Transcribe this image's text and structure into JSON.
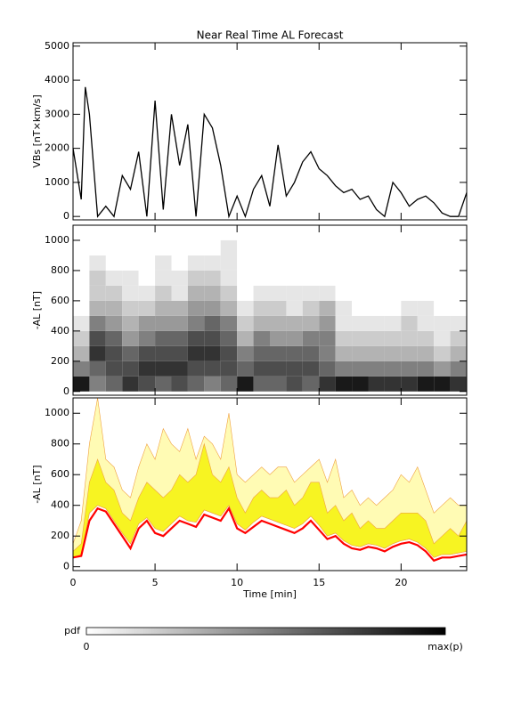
{
  "chart_data": [
    {
      "type": "line",
      "title": "Near Real Time AL Forecast",
      "y_label": "VBs [nT×km/s]",
      "color": "#000000",
      "x": [
        0,
        0.5,
        0.75,
        1,
        1.25,
        1.5,
        2,
        2.5,
        3,
        3.5,
        4,
        4.5,
        5,
        5.5,
        6,
        6.5,
        7,
        7.5,
        8,
        8.5,
        9,
        9.5,
        10,
        10.5,
        11,
        11.5,
        12,
        12.5,
        13,
        13.5,
        14,
        14.5,
        15,
        15.5,
        16,
        16.5,
        17,
        17.5,
        18,
        18.5,
        19,
        19.5,
        20,
        20.5,
        21,
        21.5,
        22,
        22.5,
        23,
        23.5,
        24
      ],
      "values": [
        2000,
        500,
        3800,
        3000,
        1500,
        0,
        300,
        0,
        1200,
        800,
        1900,
        0,
        3400,
        200,
        3000,
        1500,
        2700,
        0,
        3000,
        2600,
        1500,
        0,
        600,
        0,
        800,
        1200,
        300,
        2100,
        600,
        1000,
        1600,
        1900,
        1400,
        1200,
        900,
        700,
        800,
        500,
        600,
        200,
        0,
        1000,
        700,
        300,
        500,
        600,
        400,
        100,
        0,
        0,
        700
      ],
      "ylim": [
        -100,
        5100
      ],
      "yticks": [
        0,
        1000,
        2000,
        3000,
        4000,
        5000
      ]
    },
    {
      "type": "heatmap",
      "y_label": "-AL [nT]",
      "xbins": [
        0,
        1,
        2,
        3,
        4,
        5,
        6,
        7,
        8,
        9,
        10,
        11,
        12,
        13,
        14,
        15,
        16,
        17,
        18,
        19,
        20,
        21,
        22,
        23,
        24
      ],
      "ybins": [
        0,
        100,
        200,
        300,
        400,
        500,
        600,
        700,
        800,
        900,
        1000
      ],
      "z": [
        [
          0.9,
          0.5,
          0.3,
          0.2,
          0.1,
          0,
          0,
          0,
          0,
          0
        ],
        [
          0.5,
          0.6,
          0.8,
          0.7,
          0.5,
          0.3,
          0.2,
          0.2,
          0.1,
          0
        ],
        [
          0.6,
          0.7,
          0.7,
          0.6,
          0.4,
          0.3,
          0.2,
          0.1,
          0,
          0
        ],
        [
          0.8,
          0.7,
          0.6,
          0.4,
          0.3,
          0.2,
          0.1,
          0.1,
          0,
          0
        ],
        [
          0.7,
          0.8,
          0.7,
          0.5,
          0.4,
          0.2,
          0.1,
          0,
          0,
          0
        ],
        [
          0.6,
          0.8,
          0.7,
          0.6,
          0.4,
          0.3,
          0.2,
          0.1,
          0.1,
          0
        ],
        [
          0.7,
          0.8,
          0.7,
          0.6,
          0.4,
          0.3,
          0.1,
          0.1,
          0,
          0
        ],
        [
          0.6,
          0.7,
          0.8,
          0.7,
          0.5,
          0.4,
          0.3,
          0.2,
          0.1,
          0
        ],
        [
          0.5,
          0.7,
          0.8,
          0.7,
          0.6,
          0.4,
          0.3,
          0.2,
          0.1,
          0
        ],
        [
          0.6,
          0.7,
          0.7,
          0.6,
          0.5,
          0.3,
          0.2,
          0.1,
          0.1,
          0.1
        ],
        [
          0.9,
          0.6,
          0.5,
          0.3,
          0.2,
          0.1,
          0,
          0,
          0,
          0
        ],
        [
          0.6,
          0.7,
          0.6,
          0.5,
          0.3,
          0.2,
          0.1,
          0,
          0,
          0
        ],
        [
          0.6,
          0.7,
          0.6,
          0.4,
          0.3,
          0.2,
          0.1,
          0,
          0,
          0
        ],
        [
          0.7,
          0.7,
          0.6,
          0.4,
          0.3,
          0.1,
          0.1,
          0,
          0,
          0
        ],
        [
          0.6,
          0.7,
          0.6,
          0.5,
          0.3,
          0.2,
          0.1,
          0,
          0,
          0
        ],
        [
          0.8,
          0.6,
          0.5,
          0.5,
          0.4,
          0.3,
          0.1,
          0,
          0,
          0
        ],
        [
          0.9,
          0.5,
          0.3,
          0.2,
          0.1,
          0.1,
          0,
          0,
          0,
          0
        ],
        [
          0.9,
          0.5,
          0.3,
          0.2,
          0.1,
          0,
          0,
          0,
          0,
          0
        ],
        [
          0.8,
          0.5,
          0.3,
          0.2,
          0.1,
          0,
          0,
          0,
          0,
          0
        ],
        [
          0.8,
          0.5,
          0.3,
          0.2,
          0.1,
          0,
          0,
          0,
          0,
          0
        ],
        [
          0.8,
          0.5,
          0.3,
          0.2,
          0.2,
          0.1,
          0,
          0,
          0,
          0
        ],
        [
          0.9,
          0.5,
          0.3,
          0.2,
          0.1,
          0.1,
          0,
          0,
          0,
          0
        ],
        [
          0.9,
          0.4,
          0.2,
          0.1,
          0.1,
          0,
          0,
          0,
          0,
          0
        ],
        [
          0.8,
          0.5,
          0.3,
          0.2,
          0.1,
          0,
          0,
          0,
          0,
          0
        ]
      ],
      "ylim": [
        -25,
        1100
      ],
      "yticks": [
        0,
        200,
        400,
        600,
        800,
        1000
      ]
    },
    {
      "type": "band",
      "y_label": "-AL [nT]",
      "x_label": "Time [min]",
      "x": [
        0,
        0.5,
        1,
        1.5,
        2,
        2.5,
        3,
        3.5,
        4,
        4.5,
        5,
        5.5,
        6,
        6.5,
        7,
        7.5,
        8,
        8.5,
        9,
        9.5,
        10,
        10.5,
        11,
        11.5,
        12,
        12.5,
        13,
        13.5,
        14,
        14.5,
        15,
        15.5,
        16,
        16.5,
        17,
        17.5,
        18,
        18.5,
        19,
        19.5,
        20,
        20.5,
        21,
        21.5,
        22,
        22.5,
        23,
        23.5,
        24
      ],
      "series": [
        {
          "color": "#fffbb4",
          "values": [
            150,
            300,
            800,
            1100,
            700,
            650,
            500,
            450,
            650,
            800,
            700,
            900,
            800,
            750,
            900,
            700,
            850,
            800,
            700,
            1000,
            600,
            550,
            600,
            650,
            600,
            650,
            650,
            550,
            600,
            650,
            700,
            550,
            700,
            450,
            500,
            400,
            450,
            400,
            450,
            500,
            600,
            550,
            650,
            500,
            350,
            400,
            450,
            400,
            400
          ]
        },
        {
          "color": "#f7f422",
          "values": [
            100,
            150,
            550,
            700,
            550,
            500,
            350,
            300,
            450,
            550,
            500,
            450,
            500,
            600,
            550,
            600,
            800,
            600,
            550,
            650,
            450,
            350,
            450,
            500,
            450,
            450,
            500,
            400,
            450,
            550,
            550,
            350,
            400,
            300,
            350,
            250,
            300,
            250,
            250,
            300,
            350,
            350,
            350,
            300,
            150,
            200,
            250,
            200,
            300
          ]
        },
        {
          "color": "#f0a040",
          "values": [
            60,
            80,
            350,
            400,
            380,
            300,
            220,
            150,
            280,
            320,
            250,
            230,
            280,
            330,
            300,
            290,
            370,
            350,
            330,
            400,
            280,
            240,
            290,
            330,
            310,
            290,
            270,
            250,
            280,
            330,
            270,
            200,
            220,
            170,
            140,
            130,
            150,
            140,
            120,
            150,
            170,
            180,
            160,
            120,
            60,
            80,
            80,
            90,
            100
          ]
        },
        {
          "color": "#ff0000",
          "values": [
            60,
            70,
            300,
            380,
            360,
            280,
            200,
            120,
            250,
            300,
            220,
            200,
            250,
            300,
            280,
            260,
            340,
            320,
            300,
            380,
            250,
            220,
            260,
            300,
            280,
            260,
            240,
            220,
            250,
            300,
            240,
            180,
            200,
            150,
            120,
            110,
            130,
            120,
            100,
            130,
            150,
            160,
            140,
            100,
            40,
            60,
            60,
            70,
            80
          ]
        }
      ],
      "xlim": [
        0,
        24
      ],
      "xticks": [
        0,
        5,
        10,
        15,
        20
      ],
      "ylim": [
        -25,
        1100
      ],
      "yticks": [
        0,
        200,
        400,
        600,
        800,
        1000
      ]
    },
    {
      "type": "colorbar",
      "label": "pdf",
      "min_label": "0",
      "max_label": "max(p)"
    }
  ]
}
